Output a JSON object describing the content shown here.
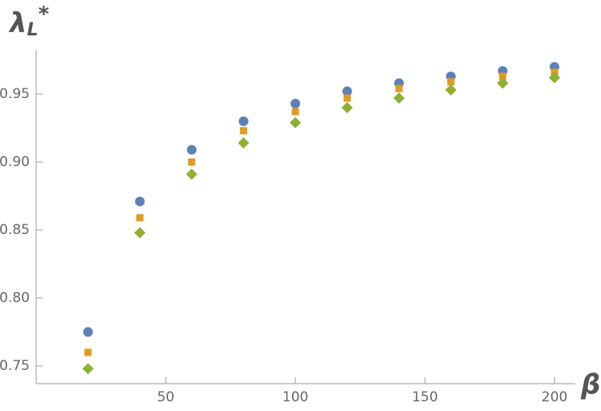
{
  "chart_data": {
    "type": "scatter",
    "xlabel": "β",
    "ylabel": "λL*",
    "x": [
      20,
      40,
      60,
      80,
      100,
      120,
      140,
      160,
      180,
      200
    ],
    "series": [
      {
        "color": "#5e81b5",
        "marker": "circle",
        "values": [
          0.775,
          0.871,
          0.909,
          0.93,
          0.943,
          0.952,
          0.958,
          0.963,
          0.967,
          0.97
        ]
      },
      {
        "color": "#e19c24",
        "marker": "square",
        "values": [
          0.76,
          0.859,
          0.9,
          0.923,
          0.937,
          0.947,
          0.954,
          0.959,
          0.963,
          0.966
        ]
      },
      {
        "color": "#8fb032",
        "marker": "diamond",
        "values": [
          0.748,
          0.848,
          0.891,
          0.914,
          0.929,
          0.94,
          0.947,
          0.953,
          0.958,
          0.962
        ]
      }
    ],
    "xlim": [
      0,
      208
    ],
    "ylim": [
      0.737,
      0.9825
    ],
    "xticks": [
      50,
      100,
      150,
      200
    ],
    "yticks": [
      0.75,
      {
        "value": 0.8,
        "label": "0.80"
      },
      0.85,
      {
        "value": 0.9,
        "label": "0.90"
      },
      0.95
    ],
    "grid": false
  }
}
